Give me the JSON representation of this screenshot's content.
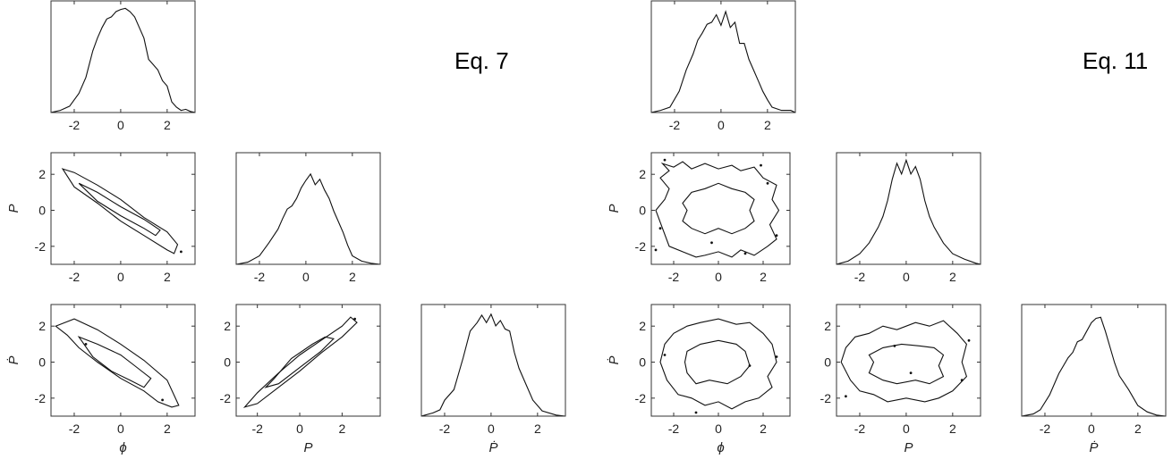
{
  "colors": {
    "line": "#111111",
    "axes": "#333333",
    "background": "#ffffff"
  },
  "labels": {
    "eq7": "Eq. 7",
    "eq11": "Eq. 11"
  },
  "variables": {
    "phi": "ϕ",
    "P": "P",
    "Pdot": "Ṗ"
  },
  "chart_data": [
    {
      "type": "line",
      "group": "Eq. 7",
      "id": "eq7_phi_hist",
      "title": "",
      "xlabel": "",
      "ylabel": "",
      "xlim": [
        -3,
        3.2
      ],
      "xticks": [
        -2,
        0,
        2
      ],
      "yticks": [],
      "series": [
        {
          "x": [
            -3.0,
            -2.6,
            -2.2,
            -1.8,
            -1.5,
            -1.2,
            -1.0,
            -0.8,
            -0.6,
            -0.4,
            -0.2,
            0.0,
            0.2,
            0.4,
            0.6,
            0.8,
            1.0,
            1.2,
            1.4,
            1.6,
            1.8,
            2.0,
            2.2,
            2.4,
            2.6,
            2.8,
            3.0,
            3.2
          ],
          "y": [
            0.0,
            0.02,
            0.06,
            0.18,
            0.33,
            0.58,
            0.7,
            0.8,
            0.88,
            0.9,
            0.95,
            0.97,
            0.98,
            0.95,
            0.9,
            0.8,
            0.7,
            0.5,
            0.45,
            0.4,
            0.3,
            0.25,
            0.1,
            0.05,
            0.02,
            0.03,
            0.01,
            0.0
          ]
        }
      ]
    },
    {
      "type": "contour",
      "group": "Eq. 7",
      "id": "eq7_phi_P",
      "xlabel": "",
      "ylabel": "P",
      "xlim": [
        -3,
        3.2
      ],
      "ylim": [
        -3,
        3.2
      ],
      "xticks": [
        -2,
        0,
        2
      ],
      "yticks": [
        -2,
        0,
        2
      ],
      "contours": [
        {
          "x": [
            -2.5,
            -2.0,
            -1.0,
            0.0,
            1.0,
            2.0,
            2.45,
            2.3,
            2.0,
            1.0,
            0.0,
            -1.0,
            -2.0,
            -2.5
          ],
          "y": [
            2.3,
            2.1,
            1.4,
            0.6,
            -0.4,
            -1.2,
            -1.9,
            -2.4,
            -2.2,
            -1.4,
            -0.6,
            0.4,
            1.3,
            2.3
          ]
        },
        {
          "x": [
            -1.8,
            -1.0,
            0.0,
            1.0,
            1.7,
            1.5,
            1.0,
            0.0,
            -1.0,
            -1.8
          ],
          "y": [
            1.5,
            1.0,
            0.2,
            -0.5,
            -1.1,
            -1.4,
            -1.0,
            -0.3,
            0.5,
            1.5
          ]
        }
      ],
      "points": [
        [
          2.6,
          -2.3
        ]
      ]
    },
    {
      "type": "line",
      "group": "Eq. 7",
      "id": "eq7_P_hist",
      "xlim": [
        -3,
        3.2
      ],
      "xticks": [
        -2,
        0,
        2
      ],
      "yticks": [],
      "series": [
        {
          "x": [
            -3.0,
            -2.5,
            -2.0,
            -1.6,
            -1.2,
            -1.0,
            -0.8,
            -0.6,
            -0.4,
            -0.2,
            0.0,
            0.2,
            0.4,
            0.6,
            0.8,
            1.0,
            1.2,
            1.4,
            1.6,
            1.8,
            2.0,
            2.4,
            2.8,
            3.2
          ],
          "y": [
            0.0,
            0.02,
            0.08,
            0.2,
            0.33,
            0.43,
            0.52,
            0.55,
            0.62,
            0.72,
            0.79,
            0.85,
            0.75,
            0.8,
            0.7,
            0.62,
            0.5,
            0.4,
            0.3,
            0.18,
            0.08,
            0.03,
            0.01,
            0.0
          ]
        }
      ]
    },
    {
      "type": "contour",
      "group": "Eq. 7",
      "id": "eq7_phi_Pdot",
      "xlabel": "ϕ",
      "ylabel": "Ṗ",
      "xlim": [
        -3,
        3.2
      ],
      "ylim": [
        -3,
        3.2
      ],
      "xticks": [
        -2,
        0,
        2
      ],
      "yticks": [
        -2,
        0,
        2
      ],
      "contours": [
        {
          "x": [
            -2.8,
            -2.0,
            -1.0,
            0.0,
            1.0,
            2.0,
            2.5,
            2.2,
            1.6,
            1.0,
            0.0,
            -1.0,
            -1.8,
            -2.3,
            -2.8
          ],
          "y": [
            2.0,
            2.4,
            1.8,
            1.0,
            0.1,
            -1.0,
            -2.4,
            -2.5,
            -2.2,
            -1.6,
            -0.9,
            0.0,
            0.8,
            1.5,
            2.0
          ]
        },
        {
          "x": [
            -1.8,
            -1.0,
            0.0,
            0.6,
            1.3,
            1.0,
            0.4,
            -0.4,
            -1.2,
            -1.8
          ],
          "y": [
            1.4,
            1.0,
            0.4,
            -0.2,
            -0.9,
            -1.4,
            -1.0,
            -0.5,
            0.3,
            1.4
          ]
        }
      ],
      "points": [
        [
          1.8,
          -2.1
        ],
        [
          -1.5,
          1.0
        ]
      ]
    },
    {
      "type": "contour",
      "group": "Eq. 7",
      "id": "eq7_P_Pdot",
      "xlabel": "P",
      "ylabel": "",
      "xlim": [
        -3,
        3.8
      ],
      "ylim": [
        -3,
        3.2
      ],
      "xticks": [
        -2,
        0,
        2
      ],
      "yticks": [
        -2,
        0,
        2
      ],
      "contours": [
        {
          "x": [
            -2.6,
            -2.0,
            -1.0,
            0.0,
            1.0,
            2.0,
            2.7,
            2.4,
            2.0,
            1.0,
            0.0,
            -1.0,
            -2.0,
            -2.6
          ],
          "y": [
            -2.5,
            -2.3,
            -1.4,
            -0.5,
            0.5,
            1.4,
            2.2,
            2.5,
            2.0,
            1.2,
            0.4,
            -0.6,
            -1.7,
            -2.5
          ]
        },
        {
          "x": [
            -1.6,
            -1.0,
            0.0,
            1.0,
            1.6,
            1.2,
            0.6,
            -0.4,
            -1.2,
            -1.6
          ],
          "y": [
            -1.4,
            -1.2,
            -0.3,
            0.6,
            1.3,
            1.4,
            1.0,
            0.2,
            -0.9,
            -1.4
          ]
        }
      ],
      "points": [
        [
          2.6,
          2.4
        ]
      ]
    },
    {
      "type": "line",
      "group": "Eq. 7",
      "id": "eq7_Pdot_hist",
      "xlabel": "Ṗ",
      "xlim": [
        -3,
        3.2
      ],
      "xticks": [
        -2,
        0,
        2
      ],
      "yticks": [],
      "series": [
        {
          "x": [
            -3.0,
            -2.5,
            -2.2,
            -2.0,
            -1.6,
            -1.2,
            -0.9,
            -0.6,
            -0.4,
            -0.2,
            0.0,
            0.2,
            0.4,
            0.6,
            0.8,
            1.0,
            1.2,
            1.4,
            1.8,
            2.2,
            2.8,
            3.2
          ],
          "y": [
            0.0,
            0.03,
            0.06,
            0.15,
            0.25,
            0.55,
            0.8,
            0.88,
            0.95,
            0.88,
            0.96,
            0.85,
            0.9,
            0.82,
            0.8,
            0.6,
            0.45,
            0.35,
            0.15,
            0.05,
            0.01,
            0.0
          ]
        }
      ]
    },
    {
      "type": "line",
      "group": "Eq. 11",
      "id": "eq11_phi_hist",
      "xlim": [
        -3,
        3.2
      ],
      "xticks": [
        -2,
        0,
        2
      ],
      "yticks": [],
      "series": [
        {
          "x": [
            -3.0,
            -2.6,
            -2.2,
            -1.8,
            -1.5,
            -1.2,
            -1.0,
            -0.8,
            -0.6,
            -0.4,
            -0.2,
            0.0,
            0.2,
            0.4,
            0.6,
            0.8,
            1.0,
            1.2,
            1.4,
            1.6,
            1.8,
            2.0,
            2.2,
            2.6,
            3.0,
            3.2
          ],
          "y": [
            0.0,
            0.02,
            0.05,
            0.2,
            0.4,
            0.55,
            0.68,
            0.75,
            0.83,
            0.85,
            0.92,
            0.82,
            0.95,
            0.8,
            0.85,
            0.65,
            0.65,
            0.5,
            0.4,
            0.3,
            0.2,
            0.12,
            0.05,
            0.02,
            0.02,
            0.0
          ]
        }
      ]
    },
    {
      "type": "contour",
      "group": "Eq. 11",
      "id": "eq11_phi_P",
      "xlabel": "",
      "ylabel": "P",
      "xlim": [
        -3,
        3.2
      ],
      "ylim": [
        -3,
        3.2
      ],
      "xticks": [
        -2,
        0,
        2
      ],
      "yticks": [
        -2,
        0,
        2
      ],
      "contours": [
        {
          "x": [
            -2.8,
            -2.4,
            -2.2,
            -2.6,
            -2.2,
            -2.5,
            -2.0,
            -1.6,
            -1.2,
            -0.6,
            0.0,
            0.6,
            1.0,
            1.6,
            2.0,
            2.6,
            2.4,
            2.7,
            2.3,
            2.6,
            2.2,
            1.6,
            1.0,
            0.6,
            0.0,
            -0.6,
            -1.0,
            -1.6,
            -2.2,
            -2.8
          ],
          "y": [
            0.0,
            0.6,
            1.2,
            1.8,
            2.2,
            2.6,
            2.4,
            2.7,
            2.3,
            2.6,
            2.3,
            2.5,
            2.2,
            2.4,
            1.8,
            1.4,
            0.6,
            0.0,
            -0.8,
            -1.6,
            -2.0,
            -2.5,
            -2.2,
            -2.6,
            -2.3,
            -2.5,
            -2.6,
            -2.3,
            -2.0,
            0.0
          ]
        },
        {
          "x": [
            -1.6,
            -1.2,
            -0.6,
            0.0,
            0.6,
            1.2,
            1.6,
            1.4,
            1.6,
            1.2,
            0.6,
            0.0,
            -0.6,
            -1.2,
            -1.6,
            -1.4,
            -1.6
          ],
          "y": [
            0.4,
            1.0,
            1.2,
            1.5,
            1.2,
            1.0,
            0.6,
            0.0,
            -0.6,
            -1.0,
            -1.3,
            -1.0,
            -1.3,
            -1.0,
            -0.6,
            0.0,
            0.4
          ]
        }
      ],
      "points": [
        [
          -2.4,
          2.8
        ],
        [
          1.9,
          2.5
        ],
        [
          -2.8,
          -2.2
        ],
        [
          2.6,
          -1.4
        ],
        [
          -0.3,
          -1.8
        ],
        [
          1.2,
          -2.4
        ],
        [
          2.2,
          1.5
        ],
        [
          -2.6,
          -1.0
        ]
      ]
    },
    {
      "type": "line",
      "group": "Eq. 11",
      "id": "eq11_P_hist",
      "xlim": [
        -3,
        3.2
      ],
      "xticks": [
        -2,
        0,
        2
      ],
      "yticks": [],
      "series": [
        {
          "x": [
            -3.0,
            -2.5,
            -2.0,
            -1.6,
            -1.2,
            -1.0,
            -0.8,
            -0.6,
            -0.4,
            -0.2,
            0.0,
            0.2,
            0.4,
            0.6,
            0.8,
            1.0,
            1.2,
            1.6,
            2.0,
            2.5,
            3.0,
            3.2
          ],
          "y": [
            0.0,
            0.03,
            0.1,
            0.2,
            0.35,
            0.45,
            0.6,
            0.8,
            0.95,
            0.85,
            0.98,
            0.85,
            0.92,
            0.8,
            0.6,
            0.45,
            0.35,
            0.2,
            0.1,
            0.05,
            0.01,
            0.0
          ]
        }
      ]
    },
    {
      "type": "contour",
      "group": "Eq. 11",
      "id": "eq11_phi_Pdot",
      "xlabel": "ϕ",
      "ylabel": "Ṗ",
      "xlim": [
        -3,
        3.2
      ],
      "ylim": [
        -3,
        3.2
      ],
      "xticks": [
        -2,
        0,
        2
      ],
      "yticks": [
        -2,
        0,
        2
      ],
      "contours": [
        {
          "x": [
            -2.4,
            -2.0,
            -1.4,
            -0.8,
            0.0,
            0.8,
            1.4,
            2.0,
            2.4,
            2.6,
            2.2,
            2.4,
            1.8,
            1.2,
            0.6,
            0.0,
            -0.6,
            -1.2,
            -1.8,
            -2.3,
            -2.6,
            -2.4
          ],
          "y": [
            1.0,
            1.6,
            2.0,
            2.2,
            2.4,
            2.1,
            2.2,
            1.6,
            1.0,
            0.0,
            -0.8,
            -1.4,
            -2.0,
            -2.2,
            -2.6,
            -2.2,
            -2.4,
            -2.0,
            -1.8,
            -1.0,
            0.0,
            1.0
          ]
        },
        {
          "x": [
            -1.4,
            -0.8,
            0.0,
            0.8,
            1.2,
            1.4,
            1.0,
            0.4,
            -0.4,
            -1.0,
            -1.4,
            -1.5,
            -1.4
          ],
          "y": [
            0.6,
            1.0,
            1.2,
            1.0,
            0.6,
            -0.2,
            -0.8,
            -1.2,
            -1.0,
            -1.2,
            -0.6,
            0.0,
            0.6
          ]
        }
      ],
      "points": [
        [
          -2.4,
          0.4
        ],
        [
          2.6,
          0.3
        ],
        [
          1.4,
          -0.2
        ],
        [
          -1.0,
          -2.8
        ]
      ]
    },
    {
      "type": "contour",
      "group": "Eq. 11",
      "id": "eq11_P_Pdot",
      "xlabel": "P",
      "ylabel": "",
      "xlim": [
        -3,
        3.2
      ],
      "ylim": [
        -3,
        3.2
      ],
      "xticks": [
        -2,
        0,
        2
      ],
      "yticks": [
        -2,
        0,
        2
      ],
      "contours": [
        {
          "x": [
            -2.6,
            -2.2,
            -1.6,
            -1.0,
            -0.4,
            0.4,
            1.0,
            1.6,
            2.2,
            2.6,
            2.4,
            2.6,
            2.0,
            1.4,
            0.8,
            0.0,
            -0.8,
            -1.4,
            -2.0,
            -2.4,
            -2.8,
            -2.6
          ],
          "y": [
            0.8,
            1.4,
            1.6,
            2.0,
            1.8,
            2.2,
            2.0,
            2.3,
            1.6,
            1.0,
            0.0,
            -0.8,
            -1.6,
            -2.0,
            -2.2,
            -2.0,
            -2.2,
            -1.8,
            -1.6,
            -1.0,
            0.0,
            0.8
          ]
        },
        {
          "x": [
            -1.6,
            -1.0,
            -0.2,
            0.6,
            1.2,
            1.6,
            1.4,
            1.6,
            1.0,
            0.4,
            -0.4,
            -1.0,
            -1.6,
            -1.4,
            -1.6
          ],
          "y": [
            0.4,
            0.8,
            1.0,
            0.9,
            0.8,
            0.4,
            -0.2,
            -0.8,
            -1.2,
            -1.0,
            -1.2,
            -1.0,
            -0.6,
            0.0,
            0.4
          ]
        }
      ],
      "points": [
        [
          -2.6,
          -1.9
        ],
        [
          2.7,
          1.2
        ],
        [
          2.4,
          -1.0
        ],
        [
          0.2,
          -0.6
        ],
        [
          -0.5,
          0.9
        ]
      ]
    },
    {
      "type": "line",
      "group": "Eq. 11",
      "id": "eq11_Pdot_hist",
      "xlabel": "Ṗ",
      "xlim": [
        -3,
        3.2
      ],
      "xticks": [
        -2,
        0,
        2
      ],
      "yticks": [],
      "series": [
        {
          "x": [
            -3.0,
            -2.5,
            -2.2,
            -1.8,
            -1.4,
            -1.0,
            -0.8,
            -0.6,
            -0.4,
            -0.2,
            0.0,
            0.2,
            0.4,
            0.6,
            0.8,
            1.0,
            1.2,
            1.6,
            2.0,
            2.4,
            2.8,
            3.2
          ],
          "y": [
            0.0,
            0.02,
            0.06,
            0.2,
            0.4,
            0.55,
            0.6,
            0.7,
            0.72,
            0.8,
            0.88,
            0.92,
            0.93,
            0.8,
            0.65,
            0.5,
            0.38,
            0.25,
            0.1,
            0.04,
            0.01,
            0.0
          ]
        }
      ]
    }
  ]
}
